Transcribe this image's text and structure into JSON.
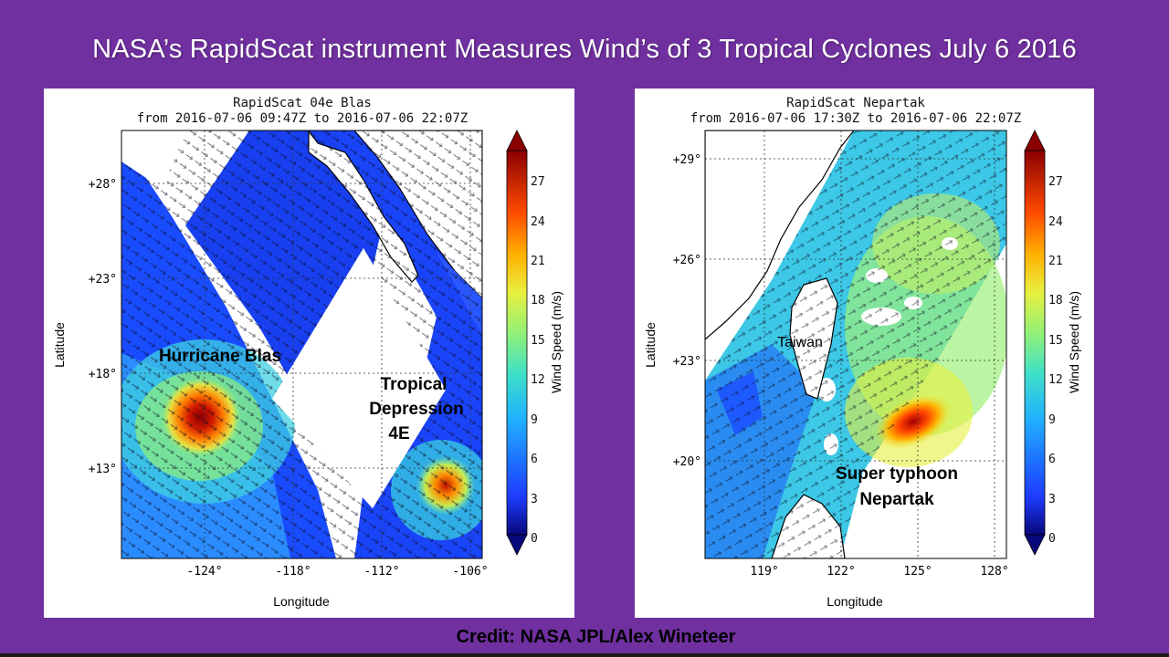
{
  "title": "NASA’s RapidScat instrument Measures Wind’s of 3 Tropical Cyclones July 6 2016",
  "credit": "Credit: NASA JPL/Alex Wineteer",
  "colorbar": {
    "label": "Wind Speed (m/s)",
    "ticks": [
      "0",
      "3",
      "6",
      "9",
      "12",
      "15",
      "18",
      "21",
      "24",
      "27"
    ],
    "range": [
      0,
      29
    ]
  },
  "maps": [
    {
      "title_line1": "RapidScat 04e Blas",
      "title_line2": "from 2016-07-06 09:47Z to 2016-07-06 22:07Z",
      "xlabel": "Longitude",
      "ylabel": "Latitude",
      "lat_ticks": [
        "+28°",
        "+23°",
        "+18°",
        "+13°"
      ],
      "lon_ticks": [
        "-124°",
        "-118°",
        "-112°",
        "-106°"
      ],
      "annotations": {
        "hurricane": "Hurricane Blas",
        "td_line1": "Tropical",
        "td_line2": "Depression",
        "td_line3": "4E"
      }
    },
    {
      "title_line1": "RapidScat Nepartak",
      "title_line2": "from 2016-07-06 17:30Z to 2016-07-06 22:07Z",
      "xlabel": "Longitude",
      "ylabel": "Latitude",
      "lat_ticks": [
        "+29°",
        "+26°",
        "+23°",
        "+20°"
      ],
      "lon_ticks": [
        "119°",
        "122°",
        "125°",
        "128°"
      ],
      "annotations": {
        "taiwan": "Taiwan",
        "typhoon_line1": "Super typhoon",
        "typhoon_line2": "Nepartak"
      }
    }
  ],
  "colors": {
    "background": "#7030a0",
    "cb_0": "#08087a",
    "cb_3": "#1e3cff",
    "cb_9": "#1fb0ff",
    "cb_12": "#3fe0c8",
    "cb_15": "#8ef07a",
    "cb_18": "#e8f040",
    "cb_21": "#ffb000",
    "cb_24": "#ff4a00",
    "cb_27": "#8a0000"
  }
}
